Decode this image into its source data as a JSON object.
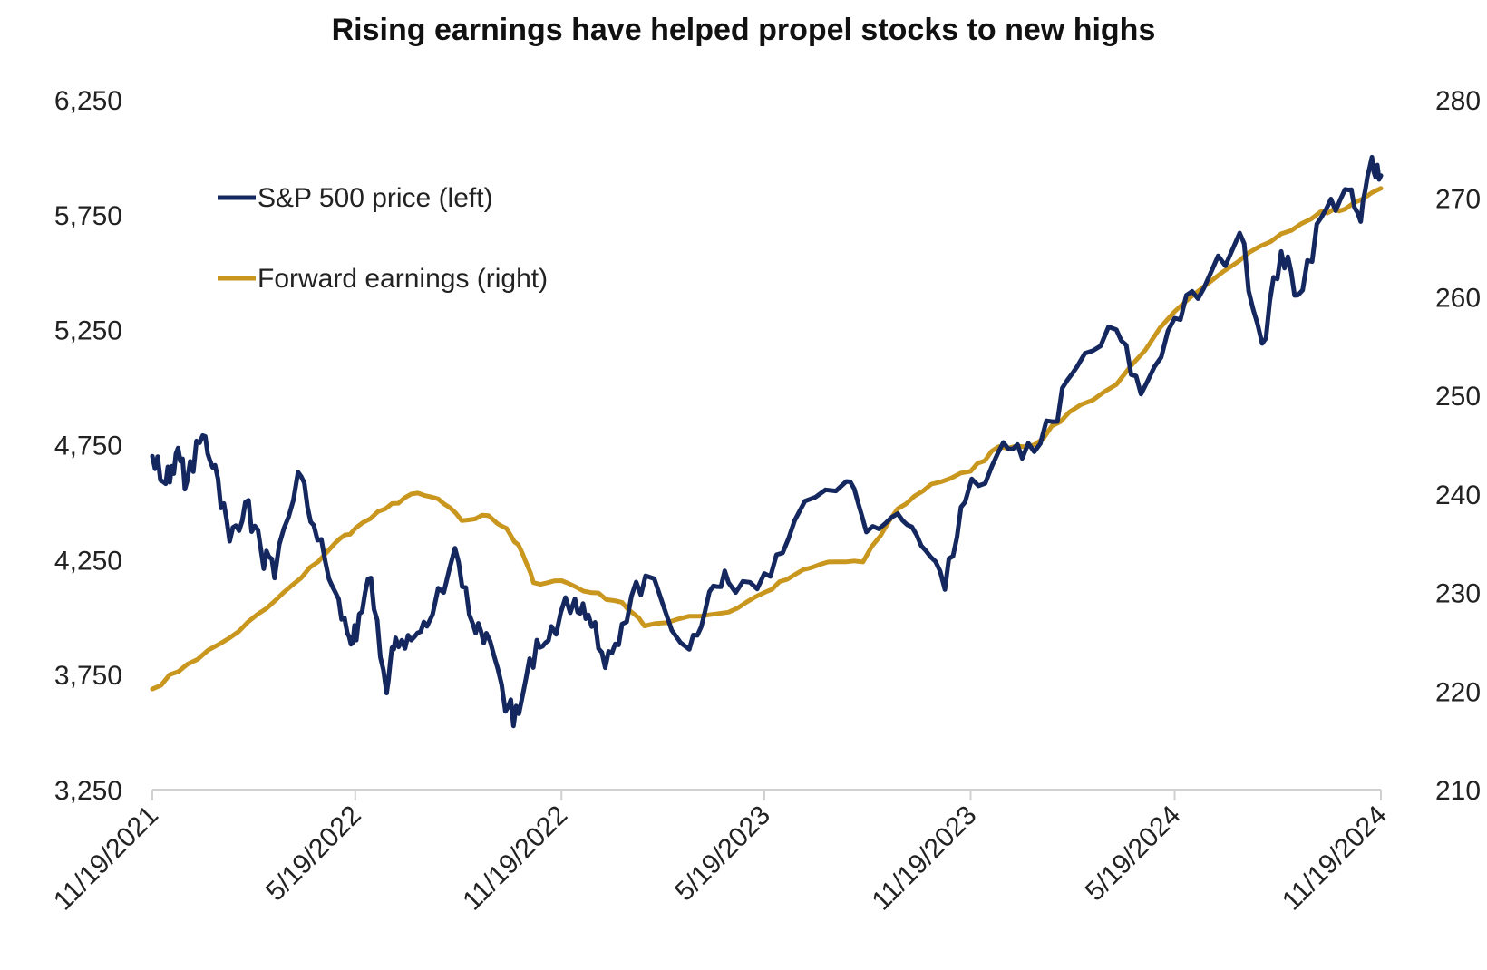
{
  "chart_data": {
    "type": "line",
    "title": "Rising earnings have helped propel stocks to new highs",
    "x_tick_labels": [
      "11/19/2021",
      "5/19/2022",
      "11/19/2022",
      "5/19/2023",
      "11/19/2023",
      "5/19/2024",
      "11/19/2024"
    ],
    "x_range": [
      "2021-11-19",
      "2024-11-19"
    ],
    "y_left": {
      "range": [
        3250,
        6250
      ],
      "ticks": [
        3250,
        3750,
        4250,
        4750,
        5250,
        5750,
        6250
      ],
      "tick_labels": [
        "3,250",
        "3,750",
        "4,250",
        "4,750",
        "5,250",
        "5,750",
        "6,250"
      ]
    },
    "y_right": {
      "range": [
        210,
        280
      ],
      "ticks": [
        210,
        220,
        230,
        240,
        250,
        260,
        270,
        280
      ],
      "tick_labels": [
        "210",
        "220",
        "230",
        "240",
        "250",
        "260",
        "270",
        "280"
      ]
    },
    "legend_position": "top-left",
    "grid": false,
    "series": [
      {
        "name": "S&P 500 price (left)",
        "axis": "left",
        "color": "#14285f",
        "points": [
          [
            "2021-11-19",
            4700
          ],
          [
            "2021-12-01",
            4580
          ],
          [
            "2021-12-10",
            4710
          ],
          [
            "2021-12-20",
            4590
          ],
          [
            "2022-01-03",
            4790
          ],
          [
            "2022-01-14",
            4660
          ],
          [
            "2022-01-27",
            4330
          ],
          [
            "2022-02-10",
            4500
          ],
          [
            "2022-02-24",
            4290
          ],
          [
            "2022-03-08",
            4170
          ],
          [
            "2022-03-29",
            4630
          ],
          [
            "2022-04-12",
            4400
          ],
          [
            "2022-04-29",
            4130
          ],
          [
            "2022-05-12",
            3930
          ],
          [
            "2022-05-20",
            3900
          ],
          [
            "2022-06-02",
            4170
          ],
          [
            "2022-06-16",
            3670
          ],
          [
            "2022-06-24",
            3910
          ],
          [
            "2022-07-08",
            3900
          ],
          [
            "2022-07-22",
            3960
          ],
          [
            "2022-08-16",
            4300
          ],
          [
            "2022-09-01",
            3970
          ],
          [
            "2022-09-13",
            3930
          ],
          [
            "2022-09-30",
            3590
          ],
          [
            "2022-10-12",
            3580
          ],
          [
            "2022-10-28",
            3900
          ],
          [
            "2022-11-10",
            3960
          ],
          [
            "2022-12-01",
            4080
          ],
          [
            "2022-12-13",
            4010
          ],
          [
            "2022-12-28",
            3780
          ],
          [
            "2023-01-12",
            3970
          ],
          [
            "2023-02-02",
            4180
          ],
          [
            "2023-03-13",
            3860
          ],
          [
            "2023-03-31",
            4110
          ],
          [
            "2023-04-17",
            4150
          ],
          [
            "2023-05-19",
            4190
          ],
          [
            "2023-06-15",
            4420
          ],
          [
            "2023-07-31",
            4590
          ],
          [
            "2023-08-18",
            4370
          ],
          [
            "2023-09-15",
            4450
          ],
          [
            "2023-10-06",
            4310
          ],
          [
            "2023-10-27",
            4120
          ],
          [
            "2023-11-14",
            4500
          ],
          [
            "2023-12-14",
            4720
          ],
          [
            "2024-01-04",
            4690
          ],
          [
            "2024-01-31",
            4850
          ],
          [
            "2024-02-22",
            5090
          ],
          [
            "2024-03-28",
            5250
          ],
          [
            "2024-04-19",
            4970
          ],
          [
            "2024-05-19",
            5300
          ],
          [
            "2024-06-14",
            5430
          ],
          [
            "2024-07-16",
            5670
          ],
          [
            "2024-08-05",
            5190
          ],
          [
            "2024-08-22",
            5590
          ],
          [
            "2024-09-06",
            5400
          ],
          [
            "2024-09-27",
            5740
          ],
          [
            "2024-10-18",
            5860
          ],
          [
            "2024-11-01",
            5720
          ],
          [
            "2024-11-11",
            6000
          ],
          [
            "2024-11-19",
            5920
          ]
        ]
      },
      {
        "name": "Forward earnings (right)",
        "axis": "right",
        "color": "#c9961e",
        "points": [
          [
            "2021-11-19",
            220.2
          ],
          [
            "2021-12-20",
            222.7
          ],
          [
            "2022-01-27",
            225.4
          ],
          [
            "2022-03-01",
            228.4
          ],
          [
            "2022-04-01",
            231.5
          ],
          [
            "2022-05-01",
            235.0
          ],
          [
            "2022-05-19",
            236.5
          ],
          [
            "2022-06-15",
            238.5
          ],
          [
            "2022-07-08",
            240.0
          ],
          [
            "2022-08-01",
            239.5
          ],
          [
            "2022-08-22",
            237.3
          ],
          [
            "2022-09-15",
            237.8
          ],
          [
            "2022-10-01",
            236.5
          ],
          [
            "2022-10-15",
            234.0
          ],
          [
            "2022-10-25",
            231.0
          ],
          [
            "2022-11-19",
            231.2
          ],
          [
            "2022-12-15",
            230.0
          ],
          [
            "2023-01-12",
            229.0
          ],
          [
            "2023-02-01",
            226.6
          ],
          [
            "2023-03-13",
            227.6
          ],
          [
            "2023-04-17",
            228.0
          ],
          [
            "2023-05-19",
            230.0
          ],
          [
            "2023-06-15",
            231.8
          ],
          [
            "2023-07-15",
            233.1
          ],
          [
            "2023-08-15",
            233.1
          ],
          [
            "2023-09-15",
            238.5
          ],
          [
            "2023-10-15",
            241.0
          ],
          [
            "2023-11-19",
            242.3
          ],
          [
            "2023-12-14",
            244.8
          ],
          [
            "2024-01-15",
            245.0
          ],
          [
            "2024-02-15",
            248.3
          ],
          [
            "2024-03-28",
            251.1
          ],
          [
            "2024-05-19",
            258.5
          ],
          [
            "2024-07-15",
            263.6
          ],
          [
            "2024-08-22",
            266.4
          ],
          [
            "2024-09-27",
            268.7
          ],
          [
            "2024-10-18",
            268.9
          ],
          [
            "2024-11-19",
            271.0
          ]
        ]
      }
    ]
  }
}
